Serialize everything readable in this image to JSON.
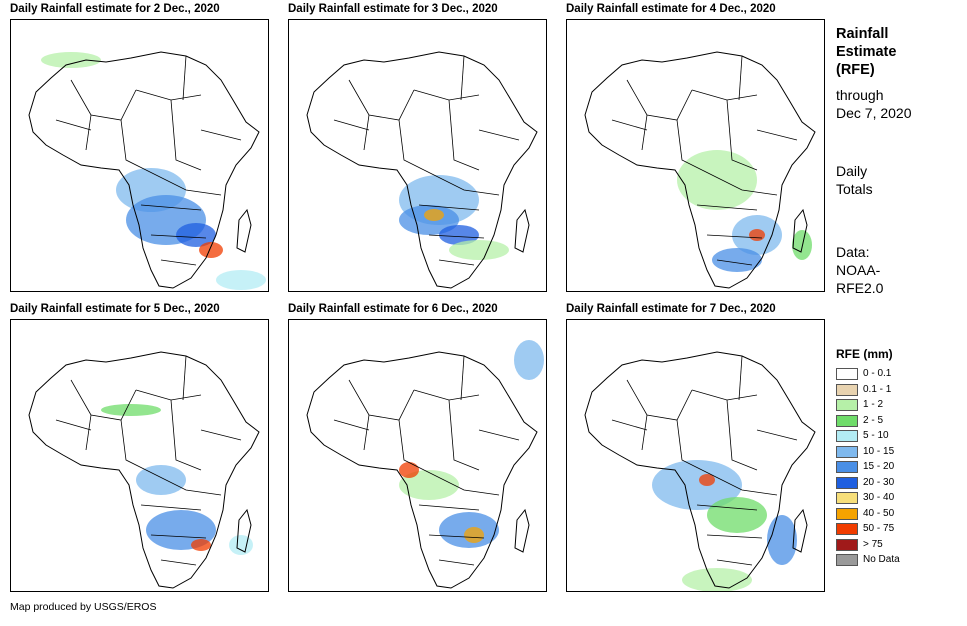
{
  "panels": [
    {
      "title": "Daily Rainfall estimate for 2 Dec., 2020"
    },
    {
      "title": "Daily Rainfall estimate for 3 Dec., 2020"
    },
    {
      "title": "Daily Rainfall estimate for 4 Dec., 2020"
    },
    {
      "title": "Daily Rainfall estimate for 5 Dec., 2020"
    },
    {
      "title": "Daily Rainfall estimate for 6 Dec., 2020"
    },
    {
      "title": "Daily Rainfall estimate for 7 Dec., 2020"
    }
  ],
  "sidebar": {
    "heading": [
      "Rainfall",
      "Estimate",
      "(RFE)"
    ],
    "through": [
      "through",
      "Dec 7, 2020"
    ],
    "totals": [
      "Daily",
      "Totals"
    ],
    "data": [
      "Data:",
      "NOAA-",
      "RFE2.0"
    ]
  },
  "legend": {
    "title": "RFE (mm)",
    "items": [
      {
        "label": "0 - 0.1",
        "color": "#ffffff"
      },
      {
        "label": "0.1 - 1",
        "color": "#e8d3b0"
      },
      {
        "label": "1 - 2",
        "color": "#b6f0a8"
      },
      {
        "label": "2 - 5",
        "color": "#6fdc6a"
      },
      {
        "label": "5 - 10",
        "color": "#b3ecf4"
      },
      {
        "label": "10 - 15",
        "color": "#7fb9ee"
      },
      {
        "label": "15 - 20",
        "color": "#4a8fe6"
      },
      {
        "label": "20 - 30",
        "color": "#1f5fe0"
      },
      {
        "label": "30 - 40",
        "color": "#f7df7a"
      },
      {
        "label": "40 - 50",
        "color": "#f5a300"
      },
      {
        "label": "50 - 75",
        "color": "#f03c00"
      },
      {
        "label": "> 75",
        "color": "#a01a1a"
      },
      {
        "label": "No Data",
        "color": "#9a9a9a"
      }
    ]
  },
  "credit": "Map produced by USGS/EROS"
}
